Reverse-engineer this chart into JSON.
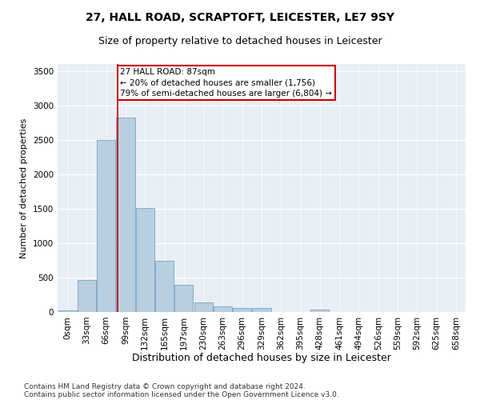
{
  "title": "27, HALL ROAD, SCRAPTOFT, LEICESTER, LE7 9SY",
  "subtitle": "Size of property relative to detached houses in Leicester",
  "xlabel": "Distribution of detached houses by size in Leicester",
  "ylabel": "Number of detached properties",
  "footnote1": "Contains HM Land Registry data © Crown copyright and database right 2024.",
  "footnote2": "Contains public sector information licensed under the Open Government Licence v3.0.",
  "bar_labels": [
    "0sqm",
    "33sqm",
    "66sqm",
    "99sqm",
    "132sqm",
    "165sqm",
    "197sqm",
    "230sqm",
    "263sqm",
    "296sqm",
    "329sqm",
    "362sqm",
    "395sqm",
    "428sqm",
    "461sqm",
    "494sqm",
    "526sqm",
    "559sqm",
    "592sqm",
    "625sqm",
    "658sqm"
  ],
  "bar_values": [
    25,
    470,
    2500,
    2820,
    1510,
    740,
    390,
    145,
    80,
    55,
    55,
    0,
    0,
    40,
    0,
    0,
    0,
    0,
    0,
    0,
    0
  ],
  "bar_color": "#b8cfe0",
  "bar_edge_color": "#6699bb",
  "property_line_x": 2.575,
  "annotation_text": "27 HALL ROAD: 87sqm\n← 20% of detached houses are smaller (1,756)\n79% of semi-detached houses are larger (6,804) →",
  "annotation_box_color": "#ffffff",
  "annotation_box_edge": "#cc0000",
  "vline_color": "#cc0000",
  "ylim": [
    0,
    3600
  ],
  "yticks": [
    0,
    500,
    1000,
    1500,
    2000,
    2500,
    3000,
    3500
  ],
  "bg_color": "#e8eef5",
  "grid_color": "#ffffff",
  "title_fontsize": 10,
  "subtitle_fontsize": 9,
  "ylabel_fontsize": 8,
  "xlabel_fontsize": 9,
  "tick_fontsize": 7.5,
  "annotation_fontsize": 7.5,
  "footnote_fontsize": 6.5
}
